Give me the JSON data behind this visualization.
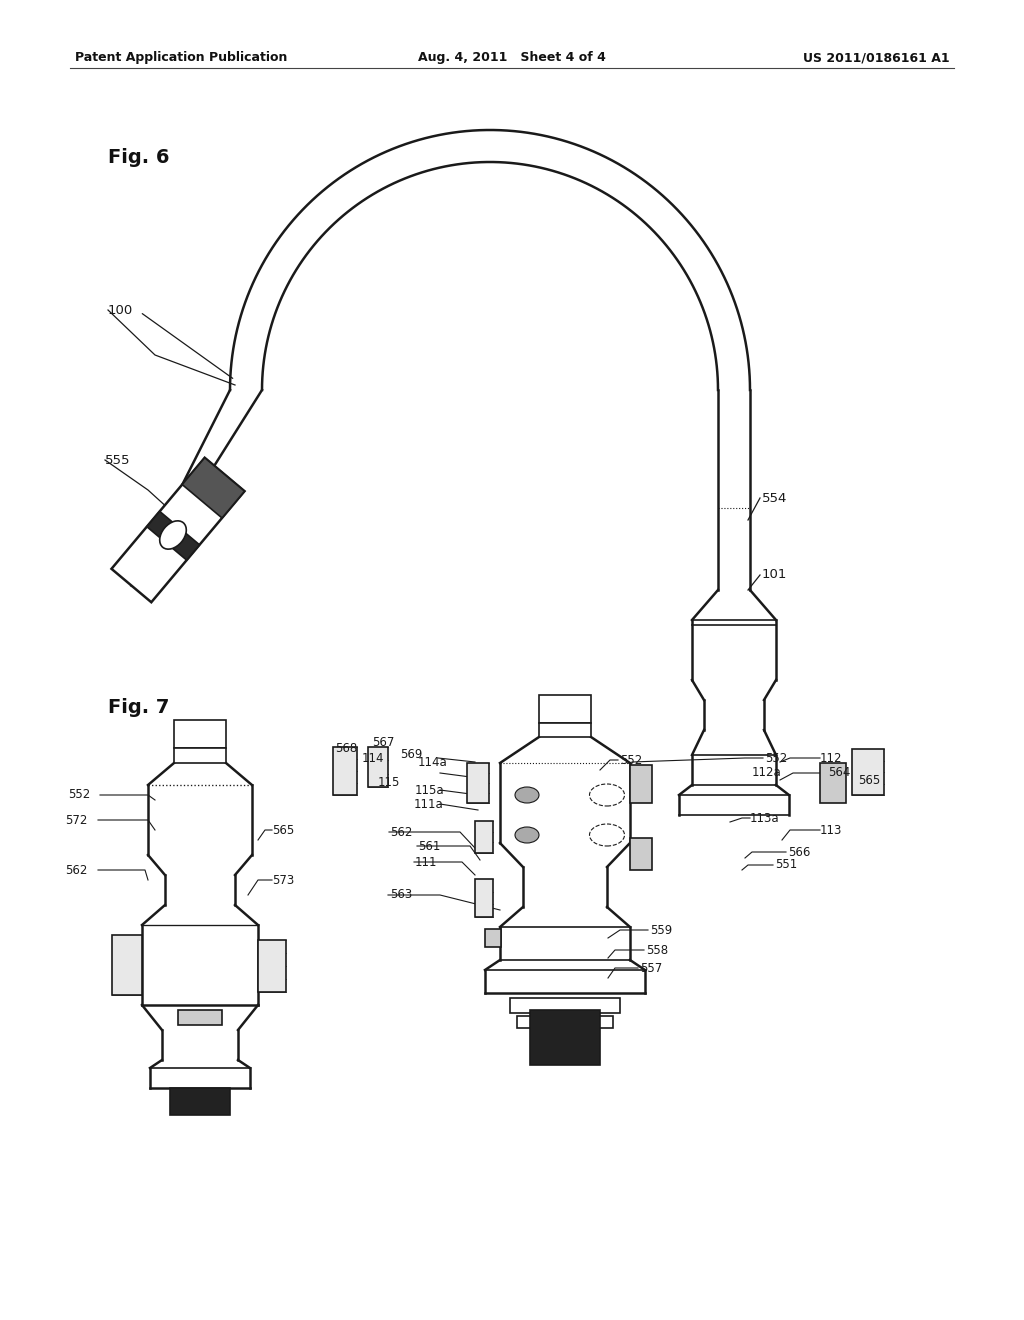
{
  "bg_color": "#f5f5f0",
  "line_color": "#1a1a1a",
  "header_left": "Patent Application Publication",
  "header_mid": "Aug. 4, 2011   Sheet 4 of 4",
  "header_right": "US 2011/0186161 A1",
  "fig_width": 10.24,
  "fig_height": 13.2,
  "dpi": 100
}
